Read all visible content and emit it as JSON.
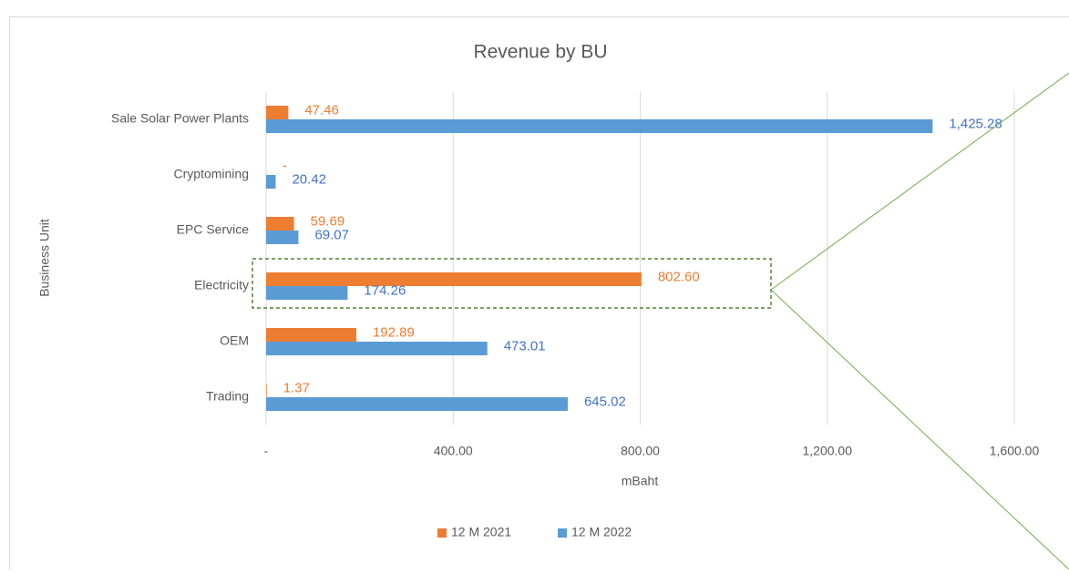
{
  "chart_data": {
    "type": "bar",
    "orientation": "horizontal",
    "title": "Revenue by BU",
    "x_label": "mBaht",
    "y_label": "Business Unit",
    "categories": [
      "Sale Solar Power Plants",
      "Cryptomining",
      "EPC Service",
      "Electricity",
      "OEM",
      "Trading"
    ],
    "series": [
      {
        "name": "12 M 2021",
        "color": "#ED7D31",
        "label_color": "#ED7D31",
        "values": [
          47.46,
          0,
          59.69,
          802.6,
          192.89,
          1.37
        ],
        "value_labels": [
          "47.46",
          "-",
          "59.69",
          "802.60",
          "192.89",
          "1.37"
        ]
      },
      {
        "name": "12 M 2022",
        "color": "#5B9BD5",
        "label_color": "#4472C4",
        "values": [
          1425.28,
          20.42,
          69.07,
          174.26,
          473.01,
          645.02
        ],
        "value_labels": [
          "1,425.28",
          "20.42",
          "69.07",
          "174.26",
          "473.01",
          "645.02"
        ]
      }
    ],
    "xlim": [
      0,
      1600
    ],
    "xticks": [
      {
        "value": 0,
        "label": "-"
      },
      {
        "value": 400,
        "label": "400.00"
      },
      {
        "value": 800,
        "label": "800.00"
      },
      {
        "value": 1200,
        "label": "1,200.00"
      },
      {
        "value": 1600,
        "label": "1,600.00"
      }
    ],
    "grid": true,
    "legend": "bottom"
  }
}
